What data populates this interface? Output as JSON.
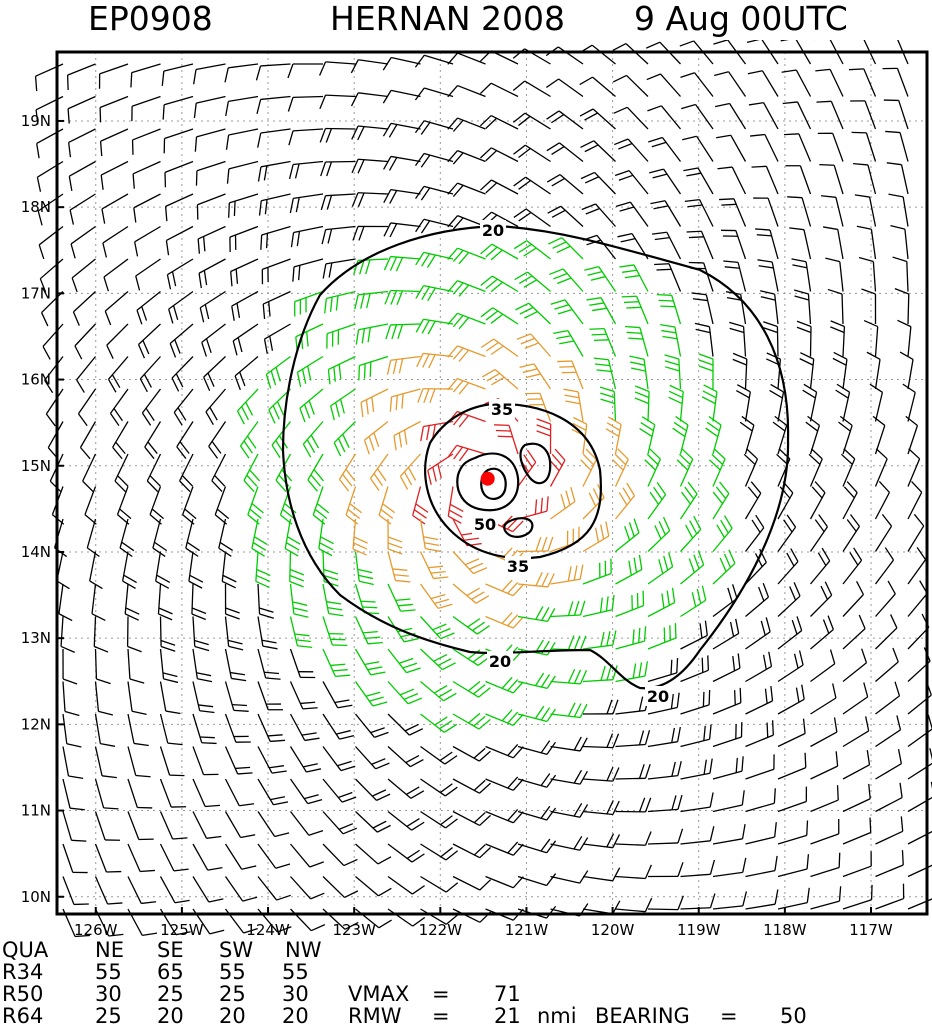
{
  "title": {
    "storm_id": "EP0908",
    "storm_name": "HERNAN 2008",
    "valid_time": "9 Aug 00UTC"
  },
  "map": {
    "lon_range": [
      -126.45,
      -116.35
    ],
    "lat_range": [
      9.8,
      19.8
    ],
    "lon_ticks": [
      -126,
      -125,
      -124,
      -123,
      -122,
      -121,
      -120,
      -119,
      -118,
      -117
    ],
    "lon_labels": [
      "126W",
      "125W",
      "124W",
      "123W",
      "122W",
      "121W",
      "120W",
      "119W",
      "118W",
      "117W"
    ],
    "lat_ticks": [
      10,
      11,
      12,
      13,
      14,
      15,
      16,
      17,
      18,
      19
    ],
    "lat_labels": [
      "10N",
      "11N",
      "12N",
      "13N",
      "14N",
      "15N",
      "16N",
      "17N",
      "18N",
      "19N"
    ],
    "grid": "dotted",
    "storm_center": {
      "lon": -121.45,
      "lat": 14.85
    },
    "contours": [
      {
        "value": "20",
        "label": "20"
      },
      {
        "value": "35",
        "label": "35"
      },
      {
        "value": "50",
        "label": "50"
      }
    ],
    "colors": {
      "barb_low": "#000000",
      "barb_34kt": "#00cc00",
      "barb_50kt": "#e69a2e",
      "barb_64kt": "#e02020",
      "center_marker": "#ff0000",
      "contour": "#000000"
    }
  },
  "table": {
    "header": {
      "label": "QUA",
      "cols": [
        "NE",
        "SE",
        "SW",
        "NW"
      ]
    },
    "rows": [
      {
        "label": "R34",
        "values": [
          "55",
          "65",
          "55",
          "55"
        ]
      },
      {
        "label": "R50",
        "values": [
          "30",
          "25",
          "25",
          "30"
        ]
      },
      {
        "label": "R64",
        "values": [
          "25",
          "20",
          "20",
          "20"
        ]
      }
    ],
    "vmax_label": "VMAX",
    "vmax_eq": "=",
    "vmax_value": "71",
    "rmw_label": "RMW",
    "rmw_eq": "=",
    "rmw_value": "21",
    "rmw_unit": "nmi",
    "bearing_label": "BEARING",
    "bearing_eq": "=",
    "bearing_value": "50"
  }
}
